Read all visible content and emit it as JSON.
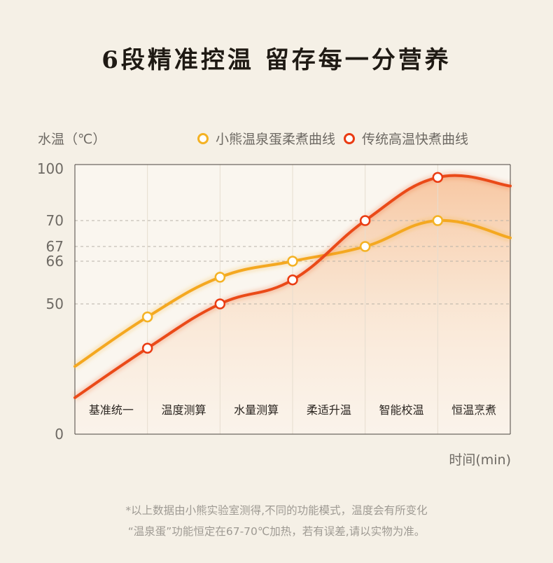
{
  "title": "6段精准控温 留存每一分营养",
  "chart_data": {
    "type": "line",
    "ylabel": "水温（℃）",
    "xlabel": "时间(min)",
    "y_ticks": [
      100,
      70,
      67,
      66,
      50,
      0
    ],
    "ylim": [
      0,
      100
    ],
    "phases": [
      "基准统一",
      "温度测算",
      "水量测算",
      "柔适升温",
      "智能校温",
      "恒温烹煮"
    ],
    "series": [
      {
        "name": "小熊温泉蛋柔煮曲线",
        "color": "#f4b224",
        "points": [
          [
            0.0,
            26
          ],
          [
            1.0,
            45
          ],
          [
            2.0,
            60
          ],
          [
            3.0,
            66
          ],
          [
            4.0,
            67
          ],
          [
            5.0,
            70
          ],
          [
            6.1,
            68
          ]
        ]
      },
      {
        "name": "传统高温快煮曲线",
        "color": "#ea3b12",
        "points": [
          [
            0.0,
            14
          ],
          [
            1.0,
            33
          ],
          [
            2.0,
            50
          ],
          [
            3.0,
            59
          ],
          [
            4.0,
            70
          ],
          [
            5.0,
            95
          ],
          [
            6.1,
            90
          ]
        ]
      }
    ]
  },
  "footnote": {
    "line1": "*以上数据由小熊实验室测得,不同的功能模式，温度会有所变化",
    "line2": "“温泉蛋”功能恒定在67-70℃加热，若有误差,请以实物为准。"
  }
}
